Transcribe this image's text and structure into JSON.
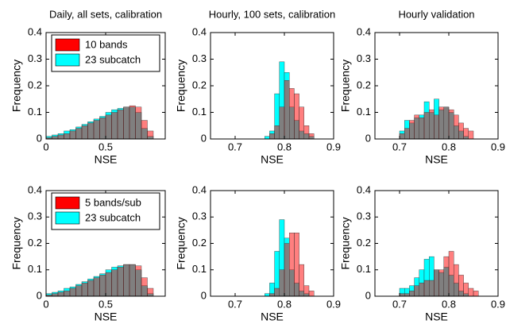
{
  "chart_data": [
    {
      "type": "histogram",
      "title": "Daily, all sets, calibration",
      "xlabel": "NSE",
      "ylabel": "Frequency",
      "bins": [
        0,
        0.05,
        0.1,
        0.15,
        0.2,
        0.25,
        0.3,
        0.35,
        0.4,
        0.45,
        0.5,
        0.55,
        0.6,
        0.65,
        0.7,
        0.75,
        0.8,
        0.85,
        0.9
      ],
      "series": [
        {
          "name": "10 bands",
          "color": "#ff0000",
          "opacity": 0.5,
          "values": [
            0.005,
            0.01,
            0.015,
            0.02,
            0.03,
            0.04,
            0.05,
            0.06,
            0.07,
            0.08,
            0.09,
            0.1,
            0.11,
            0.12,
            0.125,
            0.12,
            0.07,
            0.03
          ]
        },
        {
          "name": "23 subcatch",
          "color": "#00ffff",
          "opacity": 1,
          "values": [
            0.01,
            0.015,
            0.02,
            0.03,
            0.035,
            0.045,
            0.055,
            0.065,
            0.075,
            0.085,
            0.1,
            0.11,
            0.115,
            0.12,
            0.12,
            0.1,
            0.04,
            0.01
          ]
        }
      ],
      "xlim": [
        0,
        1
      ],
      "ylim": [
        0,
        0.4
      ],
      "xticks": [
        0,
        0.5
      ],
      "yticks": [
        0,
        0.1,
        0.2,
        0.3,
        0.4
      ],
      "legend": "upper left"
    },
    {
      "type": "histogram",
      "title": "Hourly, 100 sets, calibration",
      "xlabel": "NSE",
      "ylabel": "Frequency",
      "bins": [
        0.76,
        0.77,
        0.78,
        0.79,
        0.8,
        0.81,
        0.82,
        0.83,
        0.84,
        0.85,
        0.86
      ],
      "series": [
        {
          "color": "#ff0000",
          "opacity": 0.5,
          "values": [
            0,
            0.02,
            0.05,
            0.12,
            0.22,
            0.19,
            0.17,
            0.12,
            0.05,
            0.02
          ]
        },
        {
          "color": "#00ffff",
          "opacity": 1,
          "values": [
            0.01,
            0.03,
            0.17,
            0.29,
            0.25,
            0.12,
            0.07,
            0.03,
            0.02,
            0.01
          ]
        }
      ],
      "xlim": [
        0.65,
        0.9
      ],
      "ylim": [
        0,
        0.4
      ],
      "xticks": [
        0.7,
        0.8,
        0.9
      ],
      "yticks": [
        0,
        0.1,
        0.2,
        0.3,
        0.4
      ]
    },
    {
      "type": "histogram",
      "title": "Hourly validation",
      "xlabel": "NSE",
      "ylabel": "Frequency",
      "bins": [
        0.7,
        0.71,
        0.72,
        0.73,
        0.74,
        0.75,
        0.76,
        0.77,
        0.78,
        0.79,
        0.8,
        0.81,
        0.82,
        0.83,
        0.84,
        0.85,
        0.86
      ],
      "series": [
        {
          "color": "#ff0000",
          "opacity": 0.5,
          "values": [
            0.02,
            0.04,
            0.07,
            0.09,
            0.08,
            0.1,
            0.11,
            0.09,
            0.12,
            0.12,
            0.11,
            0.09,
            0.06,
            0.04,
            0.03,
            0
          ]
        },
        {
          "color": "#00ffff",
          "opacity": 1,
          "values": [
            0.03,
            0.07,
            0.06,
            0.08,
            0.09,
            0.14,
            0.1,
            0.15,
            0.11,
            0.12,
            0.1,
            0.05,
            0.03,
            0.01,
            0,
            0
          ]
        }
      ],
      "xlim": [
        0.65,
        0.9
      ],
      "ylim": [
        0,
        0.4
      ],
      "xticks": [
        0.7,
        0.8,
        0.9
      ],
      "yticks": [
        0,
        0.1,
        0.2,
        0.3,
        0.4
      ]
    },
    {
      "type": "histogram",
      "xlabel": "NSE",
      "ylabel": "Frequency",
      "bins": [
        0,
        0.05,
        0.1,
        0.15,
        0.2,
        0.25,
        0.3,
        0.35,
        0.4,
        0.45,
        0.5,
        0.55,
        0.6,
        0.65,
        0.7,
        0.75,
        0.8,
        0.85,
        0.9
      ],
      "series": [
        {
          "name": "5 bands/sub",
          "color": "#ff0000",
          "opacity": 0.5,
          "values": [
            0.005,
            0.01,
            0.015,
            0.02,
            0.03,
            0.04,
            0.05,
            0.06,
            0.07,
            0.08,
            0.09,
            0.1,
            0.11,
            0.12,
            0.12,
            0.115,
            0.07,
            0.03
          ]
        },
        {
          "name": "23 subcatch",
          "color": "#00ffff",
          "opacity": 1,
          "values": [
            0.01,
            0.015,
            0.02,
            0.03,
            0.035,
            0.045,
            0.055,
            0.065,
            0.075,
            0.085,
            0.1,
            0.11,
            0.115,
            0.12,
            0.12,
            0.1,
            0.04,
            0.01
          ]
        }
      ],
      "xlim": [
        0,
        1
      ],
      "ylim": [
        0,
        0.4
      ],
      "xticks": [
        0,
        0.5
      ],
      "yticks": [
        0,
        0.1,
        0.2,
        0.3,
        0.4
      ],
      "legend": "upper left"
    },
    {
      "type": "histogram",
      "xlabel": "NSE",
      "ylabel": "Frequency",
      "bins": [
        0.76,
        0.77,
        0.78,
        0.79,
        0.8,
        0.81,
        0.82,
        0.83,
        0.84,
        0.85,
        0.86
      ],
      "series": [
        {
          "color": "#ff0000",
          "opacity": 0.5,
          "values": [
            0,
            0.01,
            0.03,
            0.1,
            0.2,
            0.24,
            0.24,
            0.12,
            0.04,
            0.02
          ]
        },
        {
          "color": "#00ffff",
          "opacity": 1,
          "values": [
            0.01,
            0.05,
            0.17,
            0.29,
            0.22,
            0.1,
            0.05,
            0.02,
            0.01,
            0
          ]
        }
      ],
      "xlim": [
        0.65,
        0.9
      ],
      "ylim": [
        0,
        0.4
      ],
      "xticks": [
        0.7,
        0.8,
        0.9
      ],
      "yticks": [
        0,
        0.1,
        0.2,
        0.3,
        0.4
      ]
    },
    {
      "type": "histogram",
      "xlabel": "NSE",
      "ylabel": "Frequency",
      "bins": [
        0.7,
        0.71,
        0.72,
        0.73,
        0.74,
        0.75,
        0.76,
        0.77,
        0.78,
        0.79,
        0.8,
        0.81,
        0.82,
        0.83,
        0.84,
        0.85,
        0.86
      ],
      "series": [
        {
          "color": "#ff0000",
          "opacity": 0.5,
          "values": [
            0.01,
            0.01,
            0.02,
            0.04,
            0.05,
            0.06,
            0.06,
            0.1,
            0.1,
            0.15,
            0.17,
            0.12,
            0.08,
            0.05,
            0.03,
            0.02
          ]
        },
        {
          "color": "#00ffff",
          "opacity": 1,
          "values": [
            0.03,
            0.03,
            0.04,
            0.07,
            0.1,
            0.14,
            0.15,
            0.1,
            0.09,
            0.11,
            0.08,
            0.05,
            0.02,
            0.01,
            0,
            0
          ]
        }
      ],
      "xlim": [
        0.65,
        0.9
      ],
      "ylim": [
        0,
        0.4
      ],
      "xticks": [
        0.7,
        0.8,
        0.9
      ],
      "yticks": [
        0,
        0.1,
        0.2,
        0.3,
        0.4
      ]
    }
  ]
}
